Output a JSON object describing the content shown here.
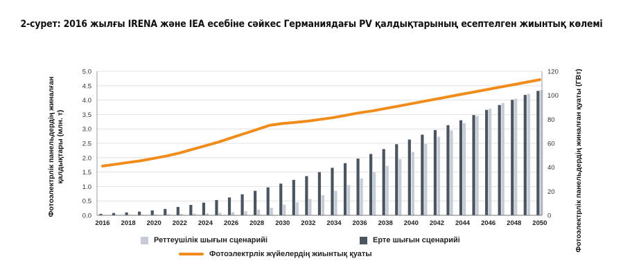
{
  "chart_data": {
    "type": "bar+line",
    "title": "2-сурет: 2016 жылғы IRENA және IEA есебіне сәйкес Германиядағы PV қалдықтарының есептелген жиынтық көлемі",
    "ylabel_left": "Фотоэлектрлік панельдердің жиналған қалдықтары (млн. т)",
    "ylabel_right": "Фотоэлектрлік панельдердің жиналған қуаты (ГВт)",
    "ylim_left": [
      0,
      5
    ],
    "ylim_right": [
      0,
      120
    ],
    "yticks_left": [
      "0.0",
      "0.5",
      "1.0",
      "1.5",
      "2.0",
      "2.5",
      "3.0",
      "3.5",
      "4.0",
      "4.5",
      "5.0"
    ],
    "yticks_right": [
      "0",
      "20",
      "40",
      "60",
      "80",
      "100",
      "120"
    ],
    "x": [
      2016,
      2017,
      2018,
      2019,
      2020,
      2021,
      2022,
      2023,
      2024,
      2025,
      2026,
      2027,
      2028,
      2029,
      2030,
      2031,
      2032,
      2033,
      2034,
      2035,
      2036,
      2037,
      2038,
      2039,
      2040,
      2041,
      2042,
      2043,
      2044,
      2045,
      2046,
      2047,
      2048,
      2049,
      2050
    ],
    "xtick_labels": [
      "2016",
      "2018",
      "2020",
      "2022",
      "2024",
      "2026",
      "2028",
      "2030",
      "2032",
      "2034",
      "2036",
      "2038",
      "2040",
      "2042",
      "2044",
      "2046",
      "2048",
      "2050"
    ],
    "series": [
      {
        "name": "Реттеушілік шығын сценарийі",
        "kind": "bar",
        "axis": "left",
        "color": "#c5ccd6",
        "values": [
          0.01,
          0.01,
          0.02,
          0.02,
          0.03,
          0.04,
          0.05,
          0.06,
          0.07,
          0.09,
          0.11,
          0.14,
          0.2,
          0.26,
          0.37,
          0.45,
          0.57,
          0.7,
          0.85,
          1.05,
          1.28,
          1.5,
          1.72,
          1.95,
          2.2,
          2.48,
          2.73,
          2.95,
          3.2,
          3.45,
          3.7,
          3.9,
          4.05,
          4.22,
          4.35
        ]
      },
      {
        "name": "Ерте шығын сценарийі",
        "kind": "bar",
        "axis": "left",
        "color": "#4b5560",
        "values": [
          0.05,
          0.08,
          0.1,
          0.13,
          0.17,
          0.22,
          0.29,
          0.36,
          0.44,
          0.53,
          0.62,
          0.73,
          0.85,
          0.97,
          1.1,
          1.23,
          1.36,
          1.5,
          1.65,
          1.81,
          1.97,
          2.13,
          2.3,
          2.47,
          2.63,
          2.8,
          2.96,
          3.13,
          3.3,
          3.48,
          3.66,
          3.83,
          4.01,
          4.18,
          4.32
        ]
      },
      {
        "name": "Фотоэлектрлік жүйелердің жиынтық қуаты",
        "kind": "line",
        "axis": "right",
        "color": "#f08c1c",
        "values": [
          41,
          42.5,
          44,
          45.5,
          47.5,
          49.5,
          52,
          55,
          58,
          61,
          64.5,
          68,
          71.5,
          75,
          76.5,
          77.5,
          78.5,
          80,
          81.5,
          83.5,
          85.5,
          87,
          89,
          91,
          93,
          95,
          97,
          99,
          101,
          103,
          105,
          107,
          109,
          111,
          113
        ]
      }
    ],
    "grid": true,
    "legend": "bottom"
  },
  "colors": {
    "regulatory": "#c5ccd6",
    "early": "#4b5560",
    "capacity": "#f08c1c",
    "grid": "#d9d9d9"
  }
}
